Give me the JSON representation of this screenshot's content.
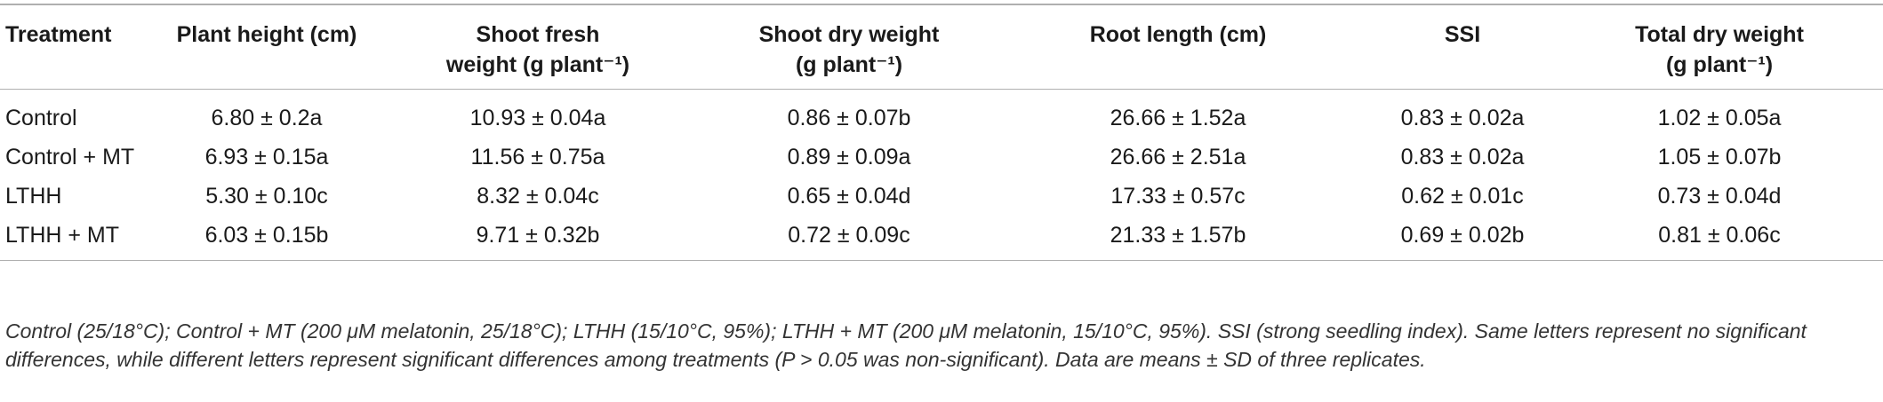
{
  "table": {
    "columns": [
      {
        "line1": "Treatment",
        "line2": ""
      },
      {
        "line1": "Plant height (cm)",
        "line2": ""
      },
      {
        "line1": "Shoot fresh",
        "line2": "weight (g plant⁻¹)"
      },
      {
        "line1": "Shoot dry weight",
        "line2": "(g plant⁻¹)"
      },
      {
        "line1": "Root length (cm)",
        "line2": ""
      },
      {
        "line1": "SSI",
        "line2": ""
      },
      {
        "line1": "Total dry weight",
        "line2": "(g plant⁻¹)"
      }
    ],
    "rows": [
      [
        "Control",
        "6.80 ± 0.2a",
        "10.93 ± 0.04a",
        "0.86 ± 0.07b",
        "26.66 ± 1.52a",
        "0.83 ± 0.02a",
        "1.02 ± 0.05a"
      ],
      [
        "Control + MT",
        "6.93 ± 0.15a",
        "11.56 ± 0.75a",
        "0.89 ± 0.09a",
        "26.66 ± 2.51a",
        "0.83 ± 0.02a",
        "1.05 ± 0.07b"
      ],
      [
        "LTHH",
        "5.30 ± 0.10c",
        "8.32 ± 0.04c",
        "0.65 ± 0.04d",
        "17.33 ± 0.57c",
        "0.62 ± 0.01c",
        "0.73 ± 0.04d"
      ],
      [
        "LTHH + MT",
        "6.03 ± 0.15b",
        "9.71 ± 0.32b",
        "0.72 ± 0.09c",
        "21.33 ± 1.57b",
        "0.69 ± 0.02b",
        "0.81 ± 0.06c"
      ]
    ]
  },
  "footnote": "Control (25/18°C); Control + MT (200 μM melatonin, 25/18°C); LTHH (15/10°C, 95%); LTHH + MT (200 μM melatonin, 15/10°C, 95%). SSI (strong seedling index). Same letters represent no significant differences, while different letters represent significant differences among treatments (P > 0.05 was non-significant). Data are means ± SD of three replicates."
}
